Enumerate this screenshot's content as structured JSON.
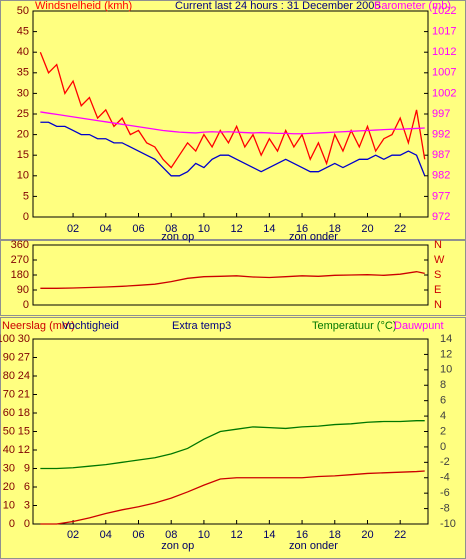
{
  "chart_data": [
    {
      "type": "line",
      "labels": [
        "Windsnelheid (kmh)",
        "Current last 24 hours : 31 December 2005",
        "Barometer (mb)"
      ],
      "x": [
        0,
        0.5,
        1,
        1.5,
        2,
        2.5,
        3,
        3.5,
        4,
        4.5,
        5,
        5.5,
        6,
        6.5,
        7,
        7.5,
        8,
        8.5,
        9,
        9.5,
        10,
        10.5,
        11,
        11.5,
        12,
        12.5,
        13,
        13.5,
        14,
        14.5,
        15,
        15.5,
        16,
        16.5,
        17,
        17.5,
        18,
        18.5,
        19,
        19.5,
        20,
        20.5,
        21,
        21.5,
        22,
        22.5,
        23,
        23.5
      ],
      "xlim": [
        -0.45,
        23.7
      ],
      "xticks": [
        {
          "value": 2,
          "label": "02"
        },
        {
          "value": 4,
          "label": "04"
        },
        {
          "value": 6,
          "label": "06"
        },
        {
          "value": 8,
          "label": "08"
        },
        {
          "value": 10,
          "label": "10"
        },
        {
          "value": 12,
          "label": "12"
        },
        {
          "value": 14,
          "label": "14"
        },
        {
          "value": 16,
          "label": "16"
        },
        {
          "value": 18,
          "label": "18"
        },
        {
          "value": 20,
          "label": "20"
        },
        {
          "value": 22,
          "label": "22"
        }
      ],
      "annotations": [
        {
          "text": "zon op",
          "x": 8.4
        },
        {
          "text": "zon onder",
          "x": 16.7
        }
      ],
      "ylim": [
        0,
        50
      ],
      "yticks": [
        0,
        5,
        10,
        15,
        20,
        25,
        30,
        35,
        40,
        45,
        50
      ],
      "y2lim": [
        972,
        1022
      ],
      "y2ticks": [
        972,
        977,
        982,
        987,
        992,
        997,
        1002,
        1007,
        1012,
        1017,
        1022
      ],
      "series": [
        {
          "color": "#ff0000",
          "values": [
            40,
            35,
            37,
            30,
            33,
            27,
            29,
            24,
            26,
            22,
            24,
            20,
            21,
            18,
            17,
            14,
            12,
            15,
            18,
            16,
            20,
            17,
            21,
            18,
            22,
            17,
            20,
            15,
            19,
            16,
            21,
            17,
            20,
            14,
            18,
            13,
            20,
            16,
            21,
            17,
            22,
            16,
            19,
            20,
            24,
            18,
            26,
            14
          ]
        },
        {
          "color": "#0000cc",
          "values": [
            23,
            23,
            22,
            22,
            21,
            20,
            20,
            19,
            19,
            18,
            18,
            17,
            16,
            15,
            14,
            12,
            10,
            10,
            11,
            13,
            12,
            14,
            15,
            15,
            14,
            13,
            12,
            11,
            12,
            13,
            14,
            13,
            12,
            11,
            11,
            12,
            13,
            12,
            13,
            14,
            14,
            15,
            14,
            15,
            15,
            16,
            15,
            10
          ]
        },
        {
          "color": "#ff00ff",
          "axis": "y2",
          "values": [
            997.5,
            997.2,
            996.9,
            996.6,
            996.3,
            996.0,
            995.7,
            995.4,
            995.1,
            994.8,
            994.5,
            994.2,
            993.9,
            993.6,
            993.3,
            993.0,
            992.8,
            992.6,
            992.5,
            992.4,
            992.6,
            992.7,
            992.6,
            992.7,
            992.6,
            992.5,
            992.4,
            992.5,
            992.4,
            992.3,
            992.3,
            992.2,
            992.2,
            992.3,
            992.4,
            992.5,
            992.6,
            992.7,
            992.8,
            992.9,
            993.0,
            993.1,
            993.2,
            993.3,
            993.3,
            993.4,
            993.5,
            993.6
          ]
        }
      ]
    },
    {
      "type": "line",
      "x": [
        0,
        1,
        2,
        3,
        4,
        5,
        6,
        7,
        8,
        9,
        10,
        11,
        12,
        13,
        14,
        15,
        16,
        17,
        18,
        19,
        20,
        21,
        22,
        23,
        23.5
      ],
      "xlim": [
        -0.45,
        23.7
      ],
      "ylim": [
        0,
        360
      ],
      "yticks": [
        0,
        90,
        180,
        270,
        360
      ],
      "y2lim": [
        0,
        360
      ],
      "y2ticks": [
        {
          "value": 0,
          "label": "N"
        },
        {
          "value": 90,
          "label": "E"
        },
        {
          "value": 180,
          "label": "S"
        },
        {
          "value": 270,
          "label": "W"
        },
        {
          "value": 360,
          "label": "N"
        }
      ],
      "series": [
        {
          "color": "#cc0000",
          "values": [
            100,
            100,
            102,
            105,
            108,
            112,
            118,
            125,
            140,
            160,
            170,
            172,
            175,
            168,
            165,
            170,
            175,
            172,
            178,
            180,
            182,
            178,
            185,
            200,
            190
          ]
        }
      ]
    },
    {
      "type": "line",
      "labels": [
        "Neerslag (mm)",
        "Vochtigheid",
        "Extra temp3",
        "Temperatuur (°C)",
        "Dauwpunt"
      ],
      "x": [
        0,
        1,
        2,
        3,
        4,
        5,
        6,
        7,
        8,
        9,
        10,
        11,
        12,
        13,
        14,
        15,
        16,
        17,
        18,
        19,
        20,
        21,
        22,
        23,
        23.5
      ],
      "xlim": [
        -0.45,
        23.7
      ],
      "xticks": [
        {
          "value": 2,
          "label": "02"
        },
        {
          "value": 4,
          "label": "04"
        },
        {
          "value": 6,
          "label": "06"
        },
        {
          "value": 8,
          "label": "08"
        },
        {
          "value": 10,
          "label": "10"
        },
        {
          "value": 12,
          "label": "12"
        },
        {
          "value": 14,
          "label": "14"
        },
        {
          "value": 16,
          "label": "16"
        },
        {
          "value": 18,
          "label": "18"
        },
        {
          "value": 20,
          "label": "20"
        },
        {
          "value": 22,
          "label": "22"
        }
      ],
      "annotations": [
        {
          "text": "zon op",
          "x": 8.4
        },
        {
          "text": "zon onder",
          "x": 16.7
        }
      ],
      "ylim": [
        0,
        100
      ],
      "yticks": [
        0,
        10,
        20,
        30,
        40,
        50,
        60,
        70,
        80,
        90,
        100
      ],
      "y3lim": [
        0,
        30
      ],
      "y3ticks": [
        0,
        3,
        6,
        9,
        12,
        15,
        18,
        21,
        24,
        27,
        30
      ],
      "y2lim": [
        -10,
        14
      ],
      "y2ticks": [
        -10,
        -8,
        -6,
        -4,
        -2,
        0,
        2,
        4,
        6,
        8,
        10,
        12,
        14
      ],
      "series": [
        {
          "color": "#007700",
          "axis": "y2",
          "values": [
            -2.8,
            -2.8,
            -2.7,
            -2.5,
            -2.3,
            -2.0,
            -1.7,
            -1.4,
            -0.9,
            -0.2,
            1.0,
            2.0,
            2.3,
            2.6,
            2.5,
            2.4,
            2.6,
            2.7,
            2.9,
            3.0,
            3.2,
            3.3,
            3.3,
            3.4,
            3.4
          ]
        },
        {
          "color": "#cc0000",
          "axis": "y3",
          "values": [
            0,
            0,
            0.4,
            1.0,
            1.7,
            2.3,
            2.8,
            3.4,
            4.2,
            5.2,
            6.3,
            7.3,
            7.5,
            7.5,
            7.5,
            7.5,
            7.5,
            7.7,
            7.8,
            8.0,
            8.2,
            8.3,
            8.4,
            8.5,
            8.6
          ]
        }
      ]
    }
  ]
}
